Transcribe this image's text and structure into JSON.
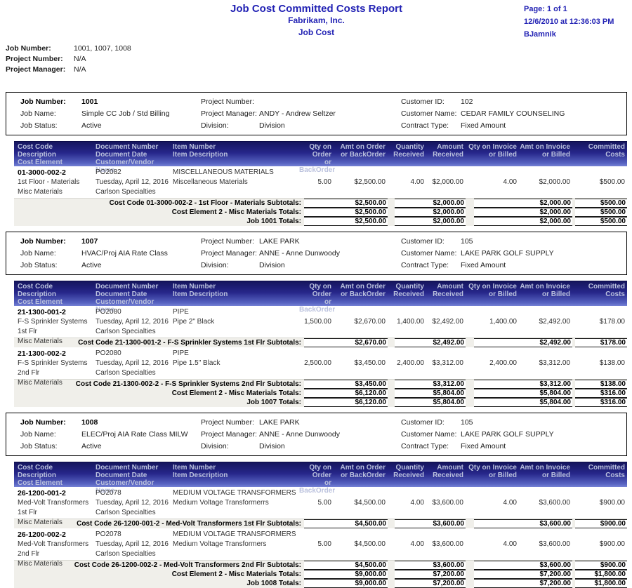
{
  "header": {
    "title": "Job Cost Committed Costs Report",
    "company": "Fabrikam, Inc.",
    "module": "Job Cost",
    "page": "Page: 1 of 1",
    "datetime": "12/6/2010 at 12:36:03 PM",
    "user": "BJamnik"
  },
  "filters": [
    {
      "label": "Job Number:",
      "value": "1001, 1007, 1008"
    },
    {
      "label": "Project Number:",
      "value": "N/A"
    },
    {
      "label": "Project Manager:",
      "value": "N/A"
    }
  ],
  "columns": {
    "c1": [
      "Cost Code",
      "Description",
      "Cost Element"
    ],
    "c2": [
      "Document Number",
      "Document Date",
      "Customer/Vendor Name"
    ],
    "c3": [
      "Item Number",
      "Item Description"
    ],
    "n1": [
      "Qty on Order",
      "or BackOrder"
    ],
    "n2": [
      "Amt on Order",
      "or BackOrder"
    ],
    "n3": [
      "Quantity",
      "Received"
    ],
    "n4": [
      "Amount",
      "Received"
    ],
    "n5": [
      "Qty on Invoice",
      "or Billed"
    ],
    "n6": [
      "Amt on Invoice",
      "or Billed"
    ],
    "n7": [
      "Committed",
      "Costs"
    ]
  },
  "jobs": [
    {
      "info": {
        "c1": [
          {
            "l": "Job Number:",
            "v": "1001"
          },
          {
            "l": "Job Name:",
            "v": "Simple CC Job / Std Billing"
          },
          {
            "l": "Job Status:",
            "v": "Active"
          }
        ],
        "c2": [
          {
            "l": "Project Number:",
            "v": ""
          },
          {
            "l": "Project Manager:",
            "v": "ANDY - Andrew Seltzer"
          },
          {
            "l": "Division:",
            "v": "Division"
          }
        ],
        "c3": [
          {
            "l": "Customer ID:",
            "v": "102"
          },
          {
            "l": "Customer Name:",
            "v": "CEDAR FAMILY COUNSELING"
          },
          {
            "l": "Contract Type:",
            "v": "Fixed Amount"
          }
        ]
      },
      "rows": [
        {
          "cost_code": "01-3000-002-2",
          "desc": "1st Floor - Materials",
          "element": "Misc Materials",
          "doc": "PO2082",
          "date": "Tuesday, April 12, 2016",
          "vendor": "Carlson Specialties",
          "item": "MISCELLANEOUS MATERIALS",
          "item_desc": "Miscellaneous Materials",
          "qty_order": "5.00",
          "amt_order": "$2,500.00",
          "qty_recv": "4.00",
          "amt_recv": "$2,000.00",
          "qty_inv": "4.00",
          "amt_inv": "$2,000.00",
          "committed": "$500.00"
        }
      ],
      "totals": [
        {
          "label": "Cost Code 01-3000-002-2 - 1st Floor - Materials Subtotals:",
          "amt_order": "$2,500.00",
          "amt_recv": "$2,000.00",
          "amt_inv": "$2,000.00",
          "committed": "$500.00"
        },
        {
          "label": "Cost Element 2 - Misc Materials Totals:",
          "amt_order": "$2,500.00",
          "amt_recv": "$2,000.00",
          "amt_inv": "$2,000.00",
          "committed": "$500.00"
        },
        {
          "label": "Job 1001 Totals:",
          "amt_order": "$2,500.00",
          "amt_recv": "$2,000.00",
          "amt_inv": "$2,000.00",
          "committed": "$500.00"
        }
      ]
    },
    {
      "info": {
        "c1": [
          {
            "l": "Job Number:",
            "v": "1007"
          },
          {
            "l": "Job Name:",
            "v": "HVAC/Proj AIA Rate Class"
          },
          {
            "l": "Job Status:",
            "v": "Active"
          }
        ],
        "c2": [
          {
            "l": "Project Number:",
            "v": "LAKE PARK"
          },
          {
            "l": "Project Manager:",
            "v": "ANNE - Anne Dunwoody"
          },
          {
            "l": "Division:",
            "v": "Division"
          }
        ],
        "c3": [
          {
            "l": "Customer ID:",
            "v": "105"
          },
          {
            "l": "Customer Name:",
            "v": "LAKE PARK GOLF SUPPLY"
          },
          {
            "l": "Contract Type:",
            "v": "Fixed Amount"
          }
        ]
      },
      "rows": [
        {
          "cost_code": "21-1300-001-2",
          "desc": "F-S Sprinkler Systems 1st Flr",
          "element": "Misc Materials",
          "doc": "PO2080",
          "date": "Tuesday, April 12, 2016",
          "vendor": "Carlson Specialties",
          "item": "PIPE",
          "item_desc": "Pipe 2\" Black",
          "qty_order": "1,500.00",
          "amt_order": "$2,670.00",
          "qty_recv": "1,400.00",
          "amt_recv": "$2,492.00",
          "qty_inv": "1,400.00",
          "amt_inv": "$2,492.00",
          "committed": "$178.00"
        },
        {
          "cost_code": "21-1300-002-2",
          "desc": "F-S Sprinkler Systems 2nd Flr",
          "element": "Misc Materials",
          "doc": "PO2080",
          "date": "Tuesday, April 12, 2016",
          "vendor": "Carlson Specialties",
          "item": "PIPE",
          "item_desc": "Pipe 1.5\" Black",
          "qty_order": "2,500.00",
          "amt_order": "$3,450.00",
          "qty_recv": "2,400.00",
          "amt_recv": "$3,312.00",
          "qty_inv": "2,400.00",
          "amt_inv": "$3,312.00",
          "committed": "$138.00"
        }
      ],
      "totals": [
        {
          "label": "Cost Code 21-1300-001-2 - F-S Sprinkler Systems 1st Flr Subtotals:",
          "amt_order": "$2,670.00",
          "amt_recv": "$2,492.00",
          "amt_inv": "$2,492.00",
          "committed": "$178.00"
        },
        {
          "label": "Cost Code 21-1300-002-2 - F-S Sprinkler Systems 2nd Flr Subtotals:",
          "amt_order": "$3,450.00",
          "amt_recv": "$3,312.00",
          "amt_inv": "$3,312.00",
          "committed": "$138.00"
        },
        {
          "label": "Cost Element 2 - Misc Materials Totals:",
          "amt_order": "$6,120.00",
          "amt_recv": "$5,804.00",
          "amt_inv": "$5,804.00",
          "committed": "$316.00"
        },
        {
          "label": "Job 1007 Totals:",
          "amt_order": "$6,120.00",
          "amt_recv": "$5,804.00",
          "amt_inv": "$5,804.00",
          "committed": "$316.00"
        }
      ]
    },
    {
      "info": {
        "c1": [
          {
            "l": "Job Number:",
            "v": "1008"
          },
          {
            "l": "Job Name:",
            "v": "ELEC/Proj AIA Rate Class MILW"
          },
          {
            "l": "Job Status:",
            "v": "Active"
          }
        ],
        "c2": [
          {
            "l": "Project Number:",
            "v": "LAKE PARK"
          },
          {
            "l": "Project Manager:",
            "v": "ANNE - Anne Dunwoody"
          },
          {
            "l": "Division:",
            "v": "Division"
          }
        ],
        "c3": [
          {
            "l": "Customer ID:",
            "v": "105"
          },
          {
            "l": "Customer Name:",
            "v": "LAKE PARK GOLF SUPPLY"
          },
          {
            "l": "Contract Type:",
            "v": "Fixed Amount"
          }
        ]
      },
      "rows": [
        {
          "cost_code": "26-1200-001-2",
          "desc": "Med-Volt Transformers 1st Flr",
          "element": "Misc Materials",
          "doc": "PO2078",
          "date": "Tuesday, April 12, 2016",
          "vendor": "Carlson Specialties",
          "item": "MEDIUM VOLTAGE TRANSFORMERS",
          "item_desc": "Medium Voltage Transformerrs",
          "qty_order": "5.00",
          "amt_order": "$4,500.00",
          "qty_recv": "4.00",
          "amt_recv": "$3,600.00",
          "qty_inv": "4.00",
          "amt_inv": "$3,600.00",
          "committed": "$900.00"
        },
        {
          "cost_code": "26-1200-002-2",
          "desc": "Med-Volt Transformers 2nd Flr",
          "element": "Misc Materials",
          "doc": "PO2078",
          "date": "Tuesday, April 12, 2016",
          "vendor": "Carlson Specialties",
          "item": "MEDIUM VOLTAGE TRANSFORMERS",
          "item_desc": "Medium Voltage Transformers",
          "qty_order": "5.00",
          "amt_order": "$4,500.00",
          "qty_recv": "4.00",
          "amt_recv": "$3,600.00",
          "qty_inv": "4.00",
          "amt_inv": "$3,600.00",
          "committed": "$900.00"
        }
      ],
      "totals": [
        {
          "label": "Cost Code 26-1200-001-2 - Med-Volt Transformers 1st Flr Subtotals:",
          "amt_order": "$4,500.00",
          "amt_recv": "$3,600.00",
          "amt_inv": "$3,600.00",
          "committed": "$900.00"
        },
        {
          "label": "Cost Code 26-1200-002-2 - Med-Volt Transformers 2nd Flr Subtotals:",
          "amt_order": "$4,500.00",
          "amt_recv": "$3,600.00",
          "amt_inv": "$3,600.00",
          "committed": "$900.00"
        },
        {
          "label": "Cost Element 2 - Misc Materials Totals:",
          "amt_order": "$9,000.00",
          "amt_recv": "$7,200.00",
          "amt_inv": "$7,200.00",
          "committed": "$1,800.00"
        },
        {
          "label": "Job 1008 Totals:",
          "amt_order": "$9,000.00",
          "amt_recv": "$7,200.00",
          "amt_inv": "$7,200.00",
          "committed": "$1,800.00"
        }
      ]
    }
  ]
}
